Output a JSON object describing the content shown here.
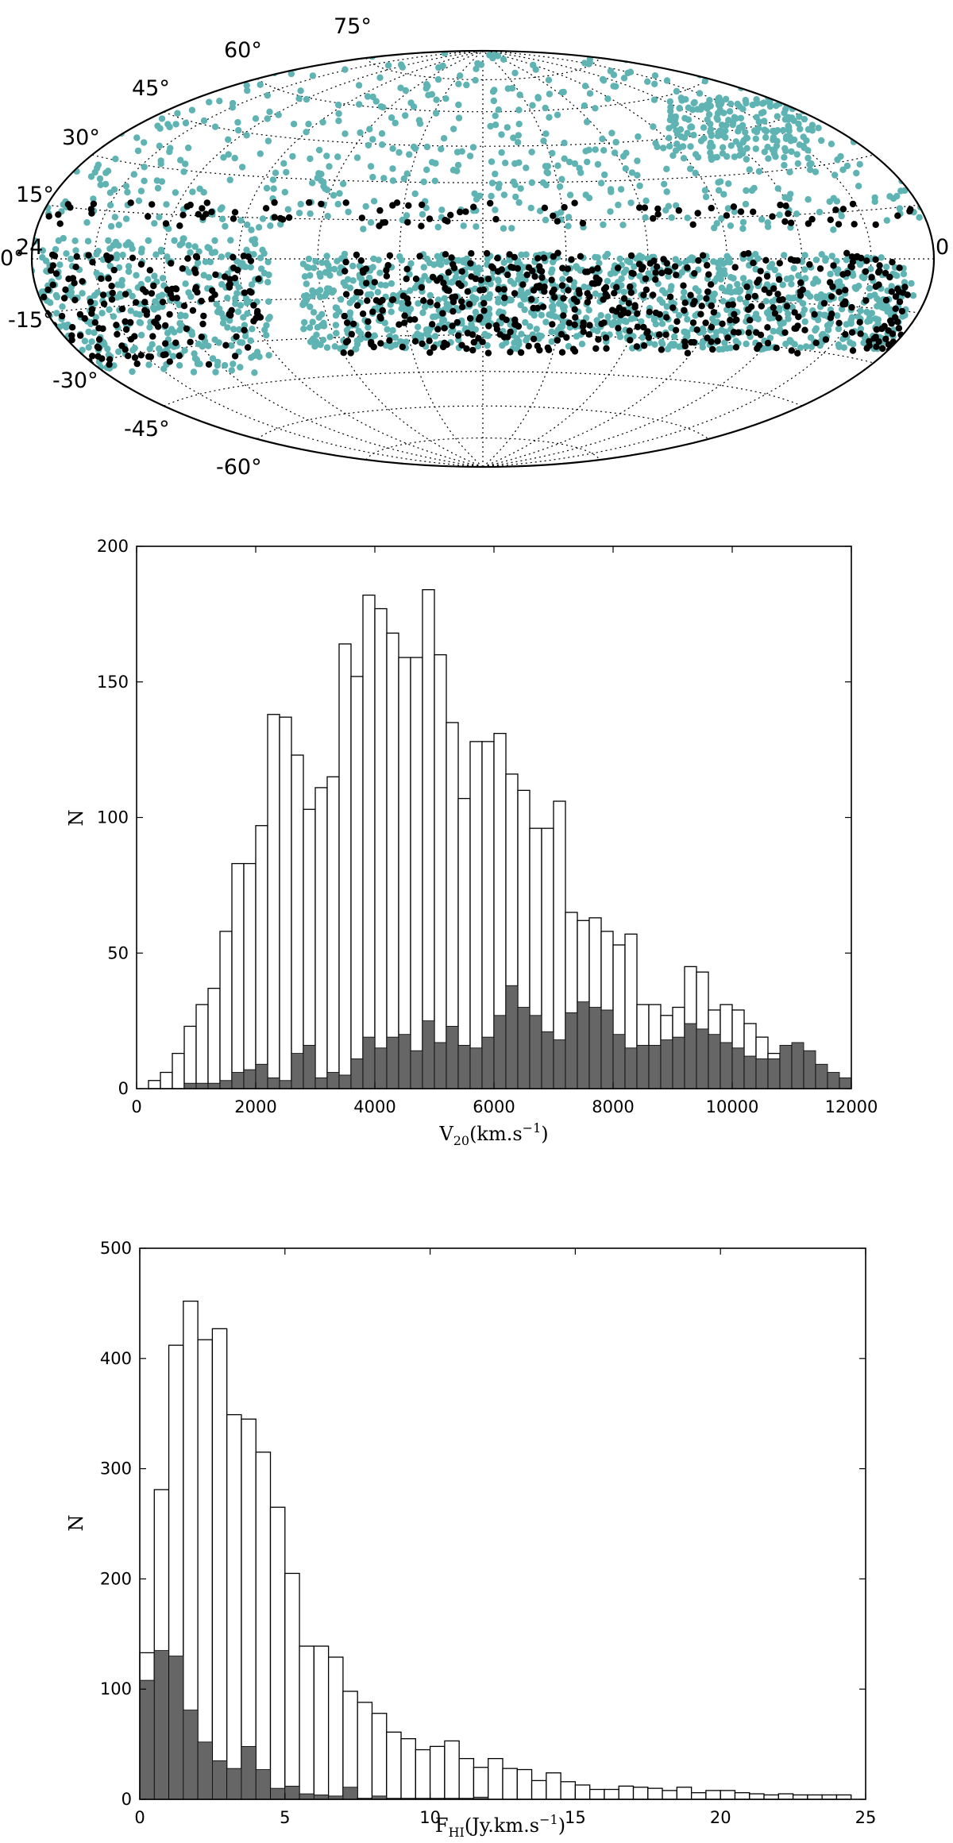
{
  "chart_data": [
    {
      "type": "scatter",
      "projection": "aitoff/hammer all-sky",
      "latitude_labels": [
        "75°",
        "60°",
        "45°",
        "30°",
        "15°",
        "0°",
        "-15°",
        "-30°",
        "-45°",
        "-60°"
      ],
      "ra_edge_labels": [
        "24",
        "0"
      ],
      "grid": true,
      "series": [
        {
          "color": "#5fb3b3"
        },
        {
          "color": "#000000"
        }
      ]
    },
    {
      "type": "bar",
      "xlabel": "V",
      "xlabel_sub": "20",
      "xlabel_unit": "(km.s",
      "xlabel_sup": "−1",
      "xlabel_close": ")",
      "ylabel": "N",
      "xlim": [
        0,
        12000
      ],
      "ylim": [
        0,
        200
      ],
      "xticks": [
        0,
        2000,
        4000,
        6000,
        8000,
        10000,
        12000
      ],
      "yticks": [
        0,
        50,
        100,
        150,
        200
      ],
      "bin_width": 200,
      "x": [
        0,
        200,
        400,
        600,
        800,
        1000,
        1200,
        1400,
        1600,
        1800,
        2000,
        2200,
        2400,
        2600,
        2800,
        3000,
        3200,
        3400,
        3600,
        3800,
        4000,
        4200,
        4400,
        4600,
        4800,
        5000,
        5200,
        5400,
        5600,
        5800,
        6000,
        6200,
        6400,
        6600,
        6800,
        7000,
        7200,
        7400,
        7600,
        7800,
        8000,
        8200,
        8400,
        8600,
        8800,
        9000,
        9200,
        9400,
        9600,
        9800,
        10000,
        10200,
        10400,
        10600,
        10800,
        11000,
        11200,
        11400,
        11600,
        11800
      ],
      "series": [
        {
          "fill": "#ffffff",
          "values": [
            0,
            3,
            6,
            13,
            23,
            31,
            37,
            58,
            83,
            83,
            97,
            138,
            137,
            123,
            103,
            111,
            115,
            164,
            152,
            182,
            177,
            168,
            159,
            159,
            184,
            160,
            135,
            107,
            128,
            128,
            131,
            116,
            110,
            96,
            96,
            106,
            65,
            62,
            63,
            58,
            53,
            57,
            31,
            31,
            27,
            30,
            45,
            43,
            29,
            31,
            29,
            24,
            19,
            13,
            11,
            7,
            3,
            1,
            0,
            0
          ]
        },
        {
          "fill": "#666666",
          "values": [
            0,
            0,
            0,
            0,
            2,
            2,
            2,
            3,
            6,
            7,
            9,
            4,
            3,
            13,
            16,
            4,
            6,
            5,
            11,
            19,
            15,
            19,
            20,
            14,
            25,
            17,
            23,
            16,
            15,
            19,
            27,
            38,
            30,
            27,
            21,
            18,
            28,
            32,
            30,
            29,
            20,
            15,
            16,
            16,
            18,
            19,
            24,
            22,
            20,
            17,
            15,
            12,
            11,
            11,
            16,
            17,
            14,
            9,
            6,
            4
          ]
        }
      ]
    },
    {
      "type": "bar",
      "xlabel": "F",
      "xlabel_sub": "HI",
      "xlabel_unit": "(Jy.km.s",
      "xlabel_sup": "−1",
      "xlabel_close": ")",
      "ylabel": "N",
      "xlim": [
        0,
        25
      ],
      "ylim": [
        0,
        500
      ],
      "xticks": [
        0,
        5,
        10,
        15,
        20,
        25
      ],
      "yticks": [
        0,
        100,
        200,
        300,
        400,
        500
      ],
      "bin_width": 0.5,
      "x": [
        0,
        0.5,
        1,
        1.5,
        2,
        2.5,
        3,
        3.5,
        4,
        4.5,
        5,
        5.5,
        6,
        6.5,
        7,
        7.5,
        8,
        8.5,
        9,
        9.5,
        10,
        10.5,
        11,
        11.5,
        12,
        12.5,
        13,
        13.5,
        14,
        14.5,
        15,
        15.5,
        16,
        16.5,
        17,
        17.5,
        18,
        18.5,
        19,
        19.5,
        20,
        20.5,
        21,
        21.5,
        22,
        22.5,
        23,
        23.5,
        24
      ],
      "series": [
        {
          "fill": "#ffffff",
          "values": [
            133,
            281,
            412,
            452,
            417,
            427,
            349,
            345,
            315,
            265,
            205,
            139,
            139,
            129,
            98,
            88,
            78,
            61,
            55,
            45,
            48,
            53,
            37,
            29,
            37,
            28,
            27,
            17,
            24,
            16,
            13,
            9,
            9,
            12,
            11,
            10,
            8,
            11,
            6,
            8,
            8,
            6,
            5,
            4,
            5,
            4,
            4,
            4,
            4
          ]
        },
        {
          "fill": "#666666",
          "values": [
            108,
            135,
            130,
            81,
            52,
            35,
            28,
            48,
            27,
            10,
            12,
            5,
            4,
            3,
            11,
            1,
            3,
            1,
            1,
            1,
            1,
            1,
            1,
            2,
            0,
            0,
            0,
            0,
            0,
            0,
            0,
            0,
            0,
            0,
            0,
            0,
            0,
            0,
            0,
            0,
            0,
            0,
            0,
            0,
            0,
            0,
            0,
            0,
            0
          ]
        }
      ]
    }
  ]
}
